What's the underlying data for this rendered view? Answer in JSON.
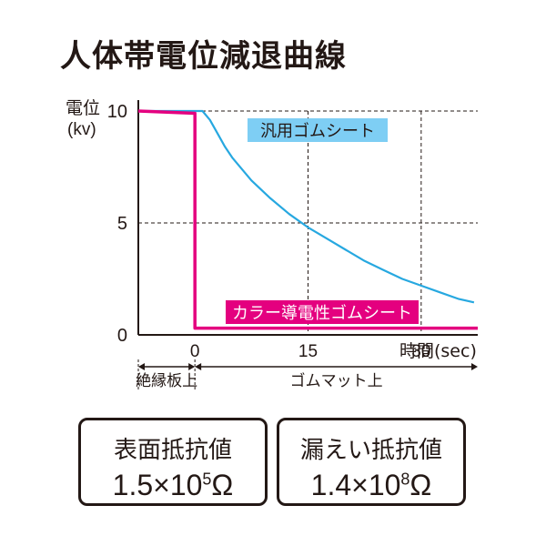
{
  "title": "人体帯電位減退曲線",
  "chart_data": {
    "type": "line",
    "y_label_line1": "電位",
    "y_label_line2": "(kv)",
    "xlabel": "時間(sec)",
    "y_ticks": [
      "0",
      "5",
      "10"
    ],
    "x_ticks": [
      "0",
      "15",
      "30"
    ],
    "ylim": [
      0,
      10
    ],
    "xlim": [
      -7.5,
      37.5
    ],
    "grid": "dashed",
    "series": [
      {
        "name": "汎用ゴムシート",
        "color": "#27a8e0",
        "label_bg": "#7ecef4",
        "x": [
          -7.5,
          1,
          2,
          3,
          4,
          5,
          7.5,
          10,
          12.5,
          15,
          17.5,
          20,
          22.5,
          25,
          27.5,
          30,
          32.5,
          35,
          37
        ],
        "values": [
          10,
          10,
          9.6,
          9.0,
          8.4,
          7.9,
          6.9,
          6.1,
          5.4,
          4.8,
          4.3,
          3.8,
          3.3,
          2.9,
          2.5,
          2.2,
          1.9,
          1.6,
          1.45
        ]
      },
      {
        "name": "カラー導電性ゴムシート",
        "color": "#e4007f",
        "label_bg": "#e4007f",
        "x": [
          -7.5,
          0,
          0,
          37.5
        ],
        "values": [
          10,
          9.9,
          0.3,
          0.3
        ]
      }
    ],
    "regions": [
      {
        "label": "絶縁板上",
        "from": -7.5,
        "to": 0
      },
      {
        "label": "ゴムマット上",
        "from": 0,
        "to": 37.5
      }
    ]
  },
  "specs": [
    {
      "label": "表面抵抗値",
      "mantissa": "1.5×10",
      "exponent": "5",
      "unit": "Ω"
    },
    {
      "label": "漏えい抵抗値",
      "mantissa": "1.4×10",
      "exponent": "8",
      "unit": "Ω"
    }
  ],
  "colors": {
    "magenta": "#e4007f",
    "blue": "#27a8e0",
    "ink": "#231815"
  }
}
